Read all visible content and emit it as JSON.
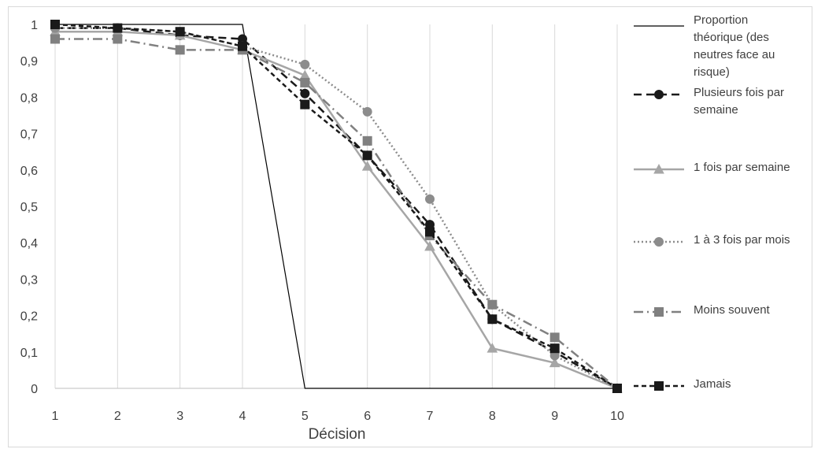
{
  "chart_data": {
    "type": "line",
    "title": "",
    "xlabel": "Décision",
    "ylabel": "",
    "categories": [
      1,
      2,
      3,
      4,
      5,
      6,
      7,
      8,
      9,
      10
    ],
    "ylim": [
      0,
      1
    ],
    "yticks": [
      "0",
      "0,1",
      "0,2",
      "0,3",
      "0,4",
      "0,5",
      "0,6",
      "0,7",
      "0,8",
      "0,9",
      "1"
    ],
    "grid": "vertical",
    "legend_position": "right",
    "series": [
      {
        "name": "Proportion théorique (des neutres face au risque)",
        "legend_lines": [
          "Proportion",
          "théorique (des",
          "neutres face au",
          "risque)"
        ],
        "values": [
          1,
          1,
          1,
          1,
          0,
          0,
          0,
          0,
          0,
          0
        ],
        "color": "#000000",
        "dash": "solid",
        "marker": "none"
      },
      {
        "name": "Plusieurs fois par semaine",
        "legend_lines": [
          "Plusieurs fois par",
          "semaine"
        ],
        "values": [
          0.99,
          0.99,
          0.97,
          0.96,
          0.81,
          0.64,
          0.45,
          0.19,
          0.1,
          0.0
        ],
        "color": "#1a1a1a",
        "dash": "longdash",
        "marker": "circle"
      },
      {
        "name": "1 fois par semaine",
        "legend_lines": [
          "1 fois par semaine"
        ],
        "values": [
          0.98,
          0.98,
          0.97,
          0.93,
          0.86,
          0.61,
          0.39,
          0.11,
          0.07,
          0.0
        ],
        "color": "#a6a6a6",
        "dash": "solid",
        "marker": "triangle"
      },
      {
        "name": "1 à 3 fois par mois",
        "legend_lines": [
          "1 à 3 fois par mois"
        ],
        "values": [
          0.99,
          0.99,
          0.98,
          0.94,
          0.89,
          0.76,
          0.52,
          0.23,
          0.09,
          0.0
        ],
        "color": "#8c8c8c",
        "dash": "dotted",
        "marker": "circle"
      },
      {
        "name": "Moins souvent",
        "legend_lines": [
          "Moins souvent"
        ],
        "values": [
          0.96,
          0.96,
          0.93,
          0.93,
          0.84,
          0.68,
          0.42,
          0.23,
          0.14,
          0.0
        ],
        "color": "#808080",
        "dash": "dashdot",
        "marker": "square"
      },
      {
        "name": "Jamais",
        "legend_lines": [
          "Jamais"
        ],
        "values": [
          1.0,
          0.99,
          0.98,
          0.94,
          0.78,
          0.64,
          0.43,
          0.19,
          0.11,
          0.0
        ],
        "color": "#1a1a1a",
        "dash": "dashed",
        "marker": "square"
      }
    ]
  }
}
